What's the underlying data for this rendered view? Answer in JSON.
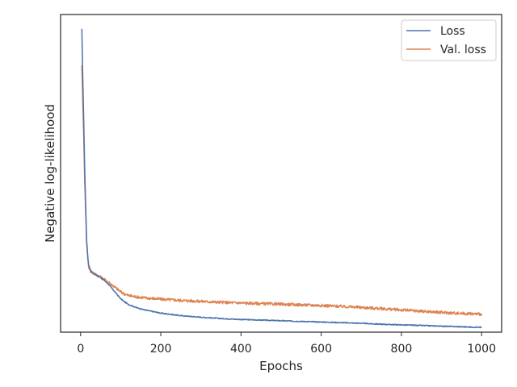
{
  "chart_data": {
    "type": "line",
    "title": "",
    "xlabel": "Epochs",
    "ylabel": "Negative log-likelihood",
    "xlim": [
      -50,
      1050
    ],
    "ylim": [
      0,
      1
    ],
    "x_ticks": [
      0,
      200,
      400,
      600,
      800,
      1000
    ],
    "y_ticks": [],
    "grid": false,
    "legend": "top-right",
    "series": [
      {
        "name": "Loss",
        "color": "#4c72b0",
        "x": [
          3,
          5,
          8,
          10,
          13,
          15,
          18,
          20,
          25,
          30,
          40,
          50,
          60,
          70,
          80,
          90,
          100,
          110,
          120,
          140,
          160,
          180,
          200,
          250,
          300,
          350,
          400,
          450,
          500,
          550,
          600,
          650,
          700,
          750,
          800,
          850,
          900,
          950,
          1000
        ],
        "y": [
          0.955,
          0.82,
          0.65,
          0.52,
          0.38,
          0.29,
          0.235,
          0.21,
          0.195,
          0.188,
          0.18,
          0.172,
          0.162,
          0.15,
          0.135,
          0.12,
          0.105,
          0.095,
          0.087,
          0.077,
          0.07,
          0.065,
          0.06,
          0.052,
          0.047,
          0.043,
          0.04,
          0.038,
          0.036,
          0.034,
          0.032,
          0.03,
          0.028,
          0.025,
          0.023,
          0.021,
          0.019,
          0.017,
          0.015
        ]
      },
      {
        "name": "Val. loss",
        "color": "#dd8452",
        "x": [
          3,
          5,
          8,
          10,
          13,
          15,
          18,
          20,
          25,
          30,
          40,
          50,
          60,
          70,
          80,
          90,
          100,
          110,
          120,
          140,
          160,
          180,
          200,
          250,
          300,
          350,
          400,
          450,
          500,
          550,
          600,
          650,
          700,
          750,
          800,
          850,
          900,
          950,
          1000
        ],
        "y": [
          0.84,
          0.74,
          0.6,
          0.48,
          0.36,
          0.28,
          0.23,
          0.205,
          0.192,
          0.186,
          0.18,
          0.173,
          0.165,
          0.157,
          0.147,
          0.137,
          0.127,
          0.12,
          0.115,
          0.111,
          0.108,
          0.106,
          0.104,
          0.1,
          0.097,
          0.094,
          0.092,
          0.09,
          0.088,
          0.086,
          0.084,
          0.081,
          0.078,
          0.074,
          0.07,
          0.066,
          0.062,
          0.059,
          0.057
        ]
      }
    ]
  }
}
